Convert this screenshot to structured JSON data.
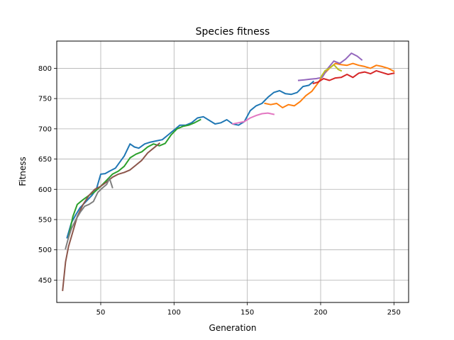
{
  "chart_data": {
    "type": "line",
    "title": "Species fitness",
    "xlabel": "Generation",
    "ylabel": "Fitness",
    "xlim": [
      20,
      260
    ],
    "ylim": [
      413,
      845
    ],
    "xticks": [
      50,
      100,
      150,
      200,
      250
    ],
    "yticks": [
      450,
      500,
      550,
      600,
      650,
      700,
      750,
      800
    ],
    "grid": true,
    "series": [
      {
        "color": "#1f77b4",
        "points": [
          [
            27,
            520
          ],
          [
            30,
            545
          ],
          [
            33,
            558
          ],
          [
            36,
            570
          ],
          [
            40,
            580
          ],
          [
            44,
            590
          ],
          [
            47,
            600
          ],
          [
            50,
            625
          ],
          [
            53,
            626
          ],
          [
            56,
            630
          ],
          [
            60,
            635
          ],
          [
            63,
            645
          ],
          [
            66,
            655
          ],
          [
            70,
            675
          ],
          [
            73,
            670
          ],
          [
            76,
            668
          ],
          [
            80,
            675
          ],
          [
            84,
            678
          ],
          [
            88,
            680
          ],
          [
            92,
            682
          ],
          [
            96,
            690
          ],
          [
            100,
            698
          ],
          [
            104,
            706
          ],
          [
            108,
            706
          ],
          [
            112,
            710
          ],
          [
            116,
            718
          ],
          [
            120,
            720
          ],
          [
            124,
            714
          ],
          [
            128,
            708
          ],
          [
            132,
            710
          ],
          [
            136,
            715
          ],
          [
            140,
            708
          ],
          [
            144,
            706
          ],
          [
            148,
            712
          ],
          [
            152,
            730
          ],
          [
            156,
            738
          ],
          [
            160,
            742
          ],
          [
            164,
            752
          ],
          [
            168,
            760
          ],
          [
            172,
            763
          ],
          [
            176,
            758
          ],
          [
            180,
            757
          ],
          [
            184,
            760
          ],
          [
            188,
            770
          ],
          [
            192,
            772
          ],
          [
            195,
            778
          ]
        ]
      },
      {
        "color": "#ff7f0e",
        "points": [
          [
            162,
            742
          ],
          [
            166,
            740
          ],
          [
            170,
            742
          ],
          [
            174,
            735
          ],
          [
            178,
            740
          ],
          [
            182,
            738
          ],
          [
            186,
            745
          ],
          [
            190,
            755
          ],
          [
            194,
            762
          ],
          [
            198,
            775
          ],
          [
            202,
            790
          ],
          [
            206,
            800
          ],
          [
            210,
            808
          ],
          [
            214,
            806
          ],
          [
            218,
            805
          ],
          [
            222,
            808
          ],
          [
            226,
            805
          ],
          [
            230,
            803
          ],
          [
            234,
            800
          ],
          [
            238,
            805
          ],
          [
            242,
            803
          ],
          [
            246,
            800
          ],
          [
            250,
            795
          ]
        ]
      },
      {
        "color": "#2ca02c",
        "points": [
          [
            28,
            520
          ],
          [
            31,
            555
          ],
          [
            34,
            575
          ],
          [
            38,
            583
          ],
          [
            42,
            590
          ],
          [
            46,
            596
          ],
          [
            50,
            605
          ],
          [
            54,
            615
          ],
          [
            58,
            625
          ],
          [
            62,
            630
          ],
          [
            66,
            638
          ],
          [
            70,
            652
          ],
          [
            74,
            658
          ],
          [
            78,
            662
          ],
          [
            82,
            670
          ],
          [
            86,
            675
          ],
          [
            90,
            672
          ],
          [
            94,
            676
          ],
          [
            98,
            690
          ],
          [
            102,
            700
          ],
          [
            106,
            704
          ],
          [
            110,
            706
          ],
          [
            114,
            710
          ],
          [
            118,
            715
          ]
        ]
      },
      {
        "color": "#d62728",
        "points": [
          [
            195,
            775
          ],
          [
            198,
            777
          ],
          [
            202,
            783
          ],
          [
            206,
            780
          ],
          [
            210,
            784
          ],
          [
            214,
            785
          ],
          [
            218,
            790
          ],
          [
            222,
            785
          ],
          [
            226,
            792
          ],
          [
            230,
            794
          ],
          [
            234,
            791
          ],
          [
            238,
            796
          ],
          [
            242,
            793
          ],
          [
            246,
            790
          ],
          [
            250,
            792
          ]
        ]
      },
      {
        "color": "#9467bd",
        "points": [
          [
            185,
            780
          ],
          [
            189,
            781
          ],
          [
            193,
            782
          ],
          [
            197,
            783
          ],
          [
            201,
            785
          ],
          [
            205,
            800
          ],
          [
            209,
            812
          ],
          [
            213,
            808
          ],
          [
            217,
            815
          ],
          [
            221,
            825
          ],
          [
            225,
            820
          ],
          [
            228,
            814
          ]
        ]
      },
      {
        "color": "#8c564b",
        "points": [
          [
            24,
            433
          ],
          [
            26,
            480
          ],
          [
            28,
            505
          ],
          [
            31,
            530
          ],
          [
            34,
            555
          ],
          [
            38,
            575
          ],
          [
            42,
            590
          ],
          [
            46,
            600
          ],
          [
            50,
            605
          ],
          [
            54,
            612
          ],
          [
            58,
            620
          ],
          [
            62,
            625
          ],
          [
            66,
            628
          ],
          [
            70,
            632
          ],
          [
            74,
            640
          ],
          [
            78,
            648
          ],
          [
            82,
            660
          ],
          [
            86,
            668
          ],
          [
            90,
            676
          ]
        ]
      },
      {
        "color": "#e377c2",
        "points": [
          [
            140,
            708
          ],
          [
            144,
            710
          ],
          [
            148,
            712
          ],
          [
            152,
            718
          ],
          [
            156,
            722
          ],
          [
            160,
            725
          ],
          [
            164,
            726
          ],
          [
            168,
            724
          ]
        ]
      },
      {
        "color": "#7f7f7f",
        "points": [
          [
            26,
            502
          ],
          [
            28,
            520
          ],
          [
            30,
            535
          ],
          [
            33,
            550
          ],
          [
            36,
            562
          ],
          [
            39,
            572
          ],
          [
            42,
            575
          ],
          [
            45,
            580
          ],
          [
            48,
            595
          ],
          [
            51,
            602
          ],
          [
            54,
            608
          ],
          [
            56,
            618
          ],
          [
            58,
            603
          ]
        ]
      },
      {
        "color": "#bcbd22",
        "points": [
          [
            200,
            785
          ],
          [
            203,
            796
          ],
          [
            206,
            800
          ],
          [
            209,
            806
          ],
          [
            212,
            798
          ],
          [
            214,
            796
          ]
        ]
      }
    ]
  }
}
